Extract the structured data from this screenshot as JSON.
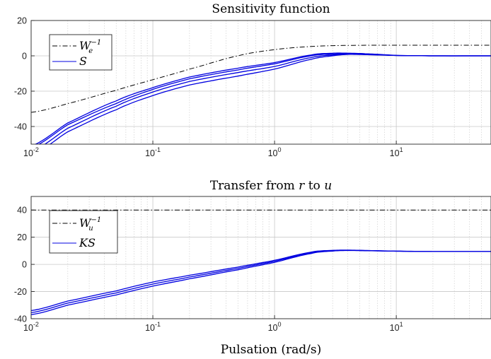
{
  "colors": {
    "series": "#0000e0",
    "weight": "#000000",
    "grid": "#d0d0d0"
  },
  "chart_data": [
    {
      "type": "line",
      "title": "Sensitivity function",
      "xlabel": "",
      "ylabel": "",
      "x_scale": "log",
      "xlim": [
        0.01,
        60
      ],
      "ylim": [
        -50,
        20
      ],
      "x_ticks": [
        {
          "base": "10",
          "exp": "-2",
          "value": 0.01
        },
        {
          "base": "10",
          "exp": "-1",
          "value": 0.1
        },
        {
          "base": "10",
          "exp": "0",
          "value": 1
        },
        {
          "base": "10",
          "exp": "1",
          "value": 10
        }
      ],
      "y_ticks": [
        {
          "label": "20",
          "value": 20
        },
        {
          "label": "0",
          "value": 0
        },
        {
          "label": "-20",
          "value": -20
        },
        {
          "label": "-40",
          "value": -40
        }
      ],
      "grid": true,
      "legend": {
        "position": "top-left",
        "entries": [
          {
            "base": "W",
            "sub": "e",
            "sup": "−1",
            "style": "dashdot"
          },
          {
            "base": "S",
            "style": "solid"
          }
        ]
      },
      "series": [
        {
          "style": "dashdot",
          "color": "weight",
          "x": [
            0.01,
            0.02,
            0.05,
            0.1,
            0.2,
            0.5,
            1,
            2,
            4,
            10,
            60
          ],
          "y": [
            -32,
            -27,
            -19.5,
            -13.5,
            -7.5,
            0,
            3.5,
            5.3,
            5.9,
            6,
            6
          ]
        },
        {
          "style": "solid",
          "color": "series",
          "x": [
            0.01,
            0.02,
            0.05,
            0.1,
            0.2,
            0.5,
            1,
            2,
            3,
            4,
            6,
            10,
            20,
            60
          ],
          "y": [
            -52,
            -39,
            -27,
            -19,
            -13,
            -8,
            -4.5,
            0,
            1,
            1.2,
            1,
            0.2,
            0,
            0
          ]
        },
        {
          "style": "solid",
          "color": "series",
          "x": [
            0.01,
            0.02,
            0.05,
            0.1,
            0.2,
            0.5,
            1,
            2,
            3,
            4,
            6,
            10,
            20,
            60
          ],
          "y": [
            -54,
            -41,
            -28.5,
            -20.5,
            -14.5,
            -9.5,
            -6,
            -1,
            0.5,
            1,
            0.8,
            0.2,
            0,
            0
          ]
        },
        {
          "style": "solid",
          "color": "series",
          "x": [
            0.01,
            0.02,
            0.05,
            0.1,
            0.2,
            0.5,
            1,
            2,
            3,
            4,
            6,
            10,
            20,
            60
          ],
          "y": [
            -56,
            -43,
            -30.5,
            -22.5,
            -16.5,
            -11.5,
            -7.5,
            -2,
            0,
            0.8,
            0.6,
            0.2,
            0,
            0
          ]
        },
        {
          "style": "solid",
          "color": "series",
          "x": [
            0.01,
            0.02,
            0.05,
            0.1,
            0.2,
            0.5,
            1,
            2,
            3,
            4,
            6,
            10,
            20,
            60
          ],
          "y": [
            -51,
            -38,
            -25.5,
            -18,
            -12,
            -7,
            -3.8,
            0.5,
            1.5,
            1.5,
            1.1,
            0.3,
            0,
            0
          ]
        }
      ]
    },
    {
      "type": "line",
      "title": "Transfer from r to u",
      "xlabel": "Pulsation (rad/s)",
      "ylabel": "",
      "x_scale": "log",
      "xlim": [
        0.01,
        60
      ],
      "ylim": [
        -40,
        50
      ],
      "x_ticks": [
        {
          "base": "10",
          "exp": "-2",
          "value": 0.01
        },
        {
          "base": "10",
          "exp": "-1",
          "value": 0.1
        },
        {
          "base": "10",
          "exp": "0",
          "value": 1
        },
        {
          "base": "10",
          "exp": "1",
          "value": 10
        }
      ],
      "y_ticks": [
        {
          "label": "40",
          "value": 40
        },
        {
          "label": "20",
          "value": 20
        },
        {
          "label": "0",
          "value": 0
        },
        {
          "label": "-20",
          "value": -20
        },
        {
          "label": "-40",
          "value": -40
        }
      ],
      "grid": true,
      "legend": {
        "position": "top-left",
        "entries": [
          {
            "base": "W",
            "sub": "u",
            "sup": "−1",
            "style": "dashdot"
          },
          {
            "base": "KS",
            "style": "solid"
          }
        ]
      },
      "series": [
        {
          "style": "dashdot",
          "color": "weight",
          "x": [
            0.01,
            60
          ],
          "y": [
            40,
            40
          ]
        },
        {
          "style": "solid",
          "color": "series",
          "x": [
            0.01,
            0.02,
            0.05,
            0.1,
            0.2,
            0.5,
            1,
            2,
            3,
            4,
            6,
            10,
            20,
            60
          ],
          "y": [
            -34,
            -27,
            -19.5,
            -13,
            -8,
            -2,
            3,
            9,
            10.3,
            10.5,
            10.2,
            9.8,
            9.5,
            9.5
          ]
        },
        {
          "style": "solid",
          "color": "series",
          "x": [
            0.01,
            0.02,
            0.05,
            0.1,
            0.2,
            0.5,
            1,
            2,
            3,
            4,
            6,
            10,
            20,
            60
          ],
          "y": [
            -35.5,
            -28.5,
            -21,
            -14.5,
            -9.3,
            -3,
            2.3,
            8.5,
            10,
            10.3,
            10.1,
            9.7,
            9.5,
            9.5
          ]
        },
        {
          "style": "solid",
          "color": "series",
          "x": [
            0.01,
            0.02,
            0.05,
            0.1,
            0.2,
            0.5,
            1,
            2,
            3,
            4,
            6,
            10,
            20,
            60
          ],
          "y": [
            -37,
            -30,
            -22.5,
            -16,
            -10.6,
            -4,
            1.5,
            8,
            9.8,
            10.2,
            10,
            9.7,
            9.5,
            9.5
          ]
        }
      ]
    }
  ]
}
